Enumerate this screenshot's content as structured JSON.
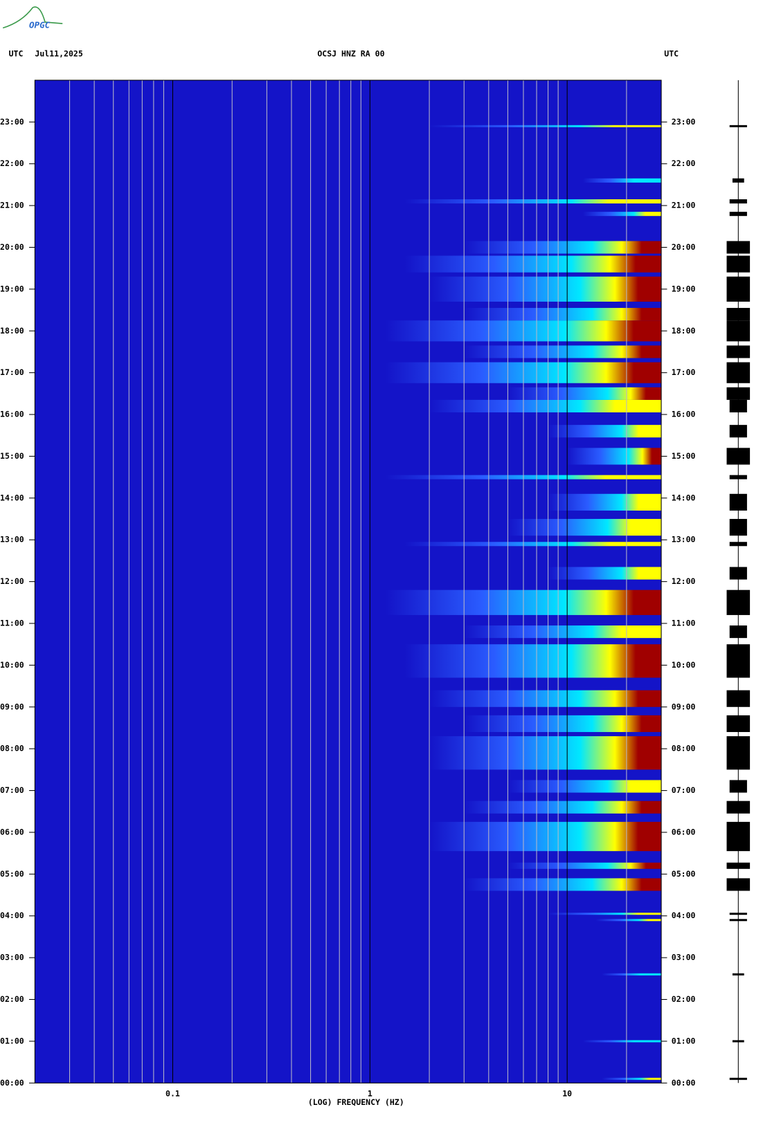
{
  "logo": "OPGC",
  "chart_data": {
    "type": "spectrogram",
    "title": "OCSJ HNZ RA 00",
    "time_zone": "UTC",
    "date": "Jul11,2025",
    "xlabel": "(LOG) FREQUENCY (HZ)",
    "x_scale": "log",
    "xlim": [
      0.02,
      30
    ],
    "xticks": [
      0.1,
      1,
      10
    ],
    "xgrid_minor": [
      0.03,
      0.04,
      0.05,
      0.06,
      0.07,
      0.08,
      0.09,
      0.2,
      0.3,
      0.4,
      0.5,
      0.6,
      0.7,
      0.8,
      0.9,
      2,
      3,
      4,
      5,
      6,
      7,
      8,
      9,
      20
    ],
    "ylim": [
      0,
      24
    ],
    "yticks": [
      {
        "value": 0,
        "label": "00:00"
      },
      {
        "value": 1,
        "label": "01:00"
      },
      {
        "value": 2,
        "label": "02:00"
      },
      {
        "value": 3,
        "label": "03:00"
      },
      {
        "value": 4,
        "label": "04:00"
      },
      {
        "value": 5,
        "label": "05:00"
      },
      {
        "value": 6,
        "label": "06:00"
      },
      {
        "value": 7,
        "label": "07:00"
      },
      {
        "value": 8,
        "label": "08:00"
      },
      {
        "value": 9,
        "label": "09:00"
      },
      {
        "value": 10,
        "label": "10:00"
      },
      {
        "value": 11,
        "label": "11:00"
      },
      {
        "value": 12,
        "label": "12:00"
      },
      {
        "value": 13,
        "label": "13:00"
      },
      {
        "value": 14,
        "label": "14:00"
      },
      {
        "value": 15,
        "label": "15:00"
      },
      {
        "value": 16,
        "label": "16:00"
      },
      {
        "value": 17,
        "label": "17:00"
      },
      {
        "value": 18,
        "label": "18:00"
      },
      {
        "value": 19,
        "label": "19:00"
      },
      {
        "value": 20,
        "label": "20:00"
      },
      {
        "value": 21,
        "label": "21:00"
      },
      {
        "value": 22,
        "label": "22:00"
      },
      {
        "value": 23,
        "label": "23:00"
      }
    ],
    "background_color": "#1414c8",
    "level_colors": [
      "#2a5cff",
      "#00e8ff",
      "#ffff00",
      "#a00000"
    ],
    "events": {
      "times": [
        0.1,
        1.0,
        2.6,
        3.9,
        4.05,
        4.75,
        5.2,
        5.9,
        6.6,
        7.1,
        7.9,
        8.6,
        9.2,
        10.1,
        10.8,
        11.5,
        12.2,
        12.9,
        13.3,
        13.9,
        14.5,
        15.0,
        15.6,
        16.2,
        16.5,
        17.0,
        17.5,
        18.0,
        18.4,
        19.0,
        19.6,
        20.0,
        20.8,
        21.1,
        21.6,
        22.9
      ],
      "fmin": [
        15,
        12,
        15,
        14,
        8,
        3,
        5,
        2,
        3,
        5,
        2,
        3,
        2,
        1.5,
        3,
        1.2,
        8,
        1.5,
        5,
        8,
        1.2,
        10,
        8,
        2,
        5,
        1.2,
        3,
        1.2,
        3,
        2,
        1.5,
        3,
        12,
        1.5,
        12,
        2
      ],
      "duration": [
        0.05,
        0.05,
        0.05,
        0.05,
        0.05,
        0.3,
        0.15,
        0.7,
        0.3,
        0.3,
        0.8,
        0.4,
        0.4,
        0.8,
        0.3,
        0.6,
        0.3,
        0.1,
        0.4,
        0.4,
        0.1,
        0.4,
        0.3,
        0.3,
        0.3,
        0.5,
        0.3,
        0.5,
        0.3,
        0.6,
        0.4,
        0.3,
        0.1,
        0.1,
        0.1,
        0.05
      ],
      "level": [
        2,
        1,
        1,
        2,
        2,
        3,
        3,
        3,
        3,
        2,
        3,
        3,
        3,
        3,
        2,
        3,
        2,
        2,
        2,
        2,
        2,
        3,
        2,
        2,
        3,
        3,
        3,
        3,
        3,
        3,
        3,
        3,
        2,
        2,
        1,
        2
      ]
    }
  }
}
